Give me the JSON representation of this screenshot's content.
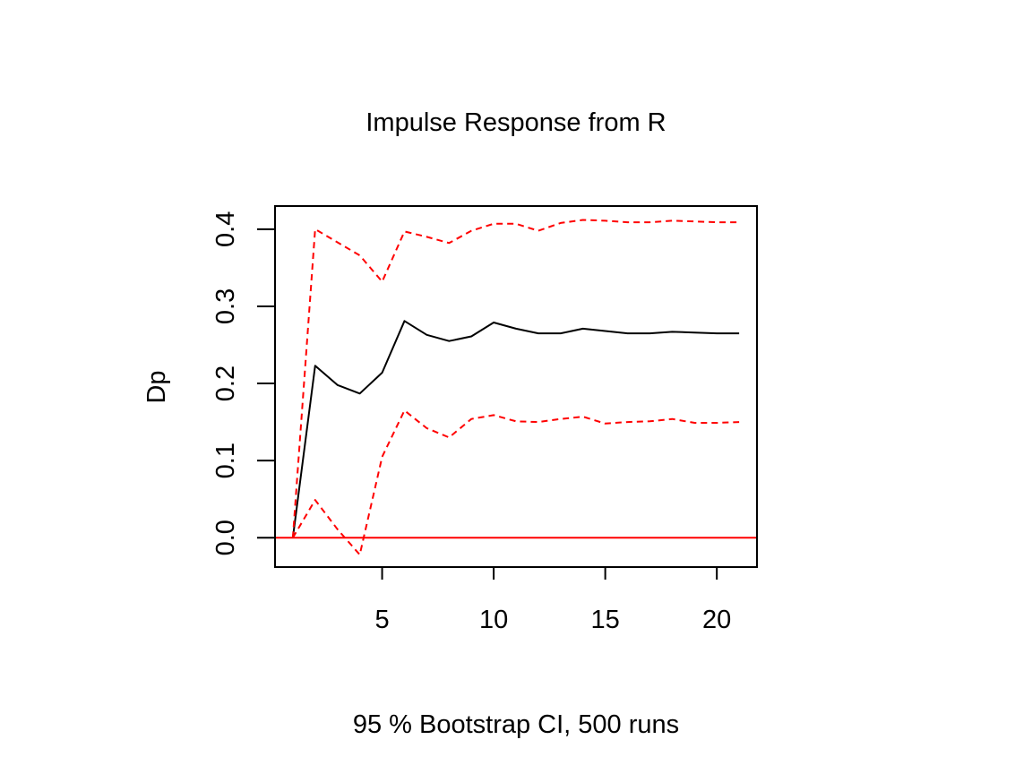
{
  "chart_data": {
    "type": "line",
    "title": "Impulse Response from R",
    "ylabel": "Dp",
    "xlabel": "95 % Bootstrap CI,  500 runs",
    "xlim": [
      0.2,
      21.8
    ],
    "ylim": [
      -0.038,
      0.43
    ],
    "x_ticks": [
      5,
      10,
      15,
      20
    ],
    "x_tick_labels": [
      "5",
      "10",
      "15",
      "20"
    ],
    "y_ticks": [
      0.0,
      0.1,
      0.2,
      0.3,
      0.4
    ],
    "y_tick_labels": [
      "0.0",
      "0.1",
      "0.2",
      "0.3",
      "0.4"
    ],
    "reference_line": {
      "y": 0,
      "color": "#ff0000"
    },
    "x": [
      1,
      2,
      3,
      4,
      5,
      6,
      7,
      8,
      9,
      10,
      11,
      12,
      13,
      14,
      15,
      16,
      17,
      18,
      19,
      20,
      21
    ],
    "series": [
      {
        "role": "irf",
        "color": "#000000",
        "dash": "solid",
        "values": [
          0.0,
          0.223,
          0.198,
          0.187,
          0.214,
          0.281,
          0.263,
          0.255,
          0.261,
          0.279,
          0.271,
          0.265,
          0.265,
          0.271,
          0.268,
          0.265,
          0.265,
          0.267,
          0.266,
          0.265,
          0.265
        ]
      },
      {
        "role": "upper",
        "color": "#ff0000",
        "dash": "dashed",
        "values": [
          0.0,
          0.4,
          0.383,
          0.366,
          0.332,
          0.397,
          0.39,
          0.382,
          0.398,
          0.407,
          0.407,
          0.398,
          0.408,
          0.412,
          0.411,
          0.409,
          0.409,
          0.411,
          0.41,
          0.409,
          0.409
        ]
      },
      {
        "role": "lower",
        "color": "#ff0000",
        "dash": "dashed",
        "values": [
          0.0,
          0.049,
          0.011,
          -0.022,
          0.105,
          0.165,
          0.142,
          0.13,
          0.154,
          0.159,
          0.151,
          0.15,
          0.154,
          0.157,
          0.148,
          0.15,
          0.151,
          0.154,
          0.149,
          0.149,
          0.15
        ]
      }
    ]
  }
}
